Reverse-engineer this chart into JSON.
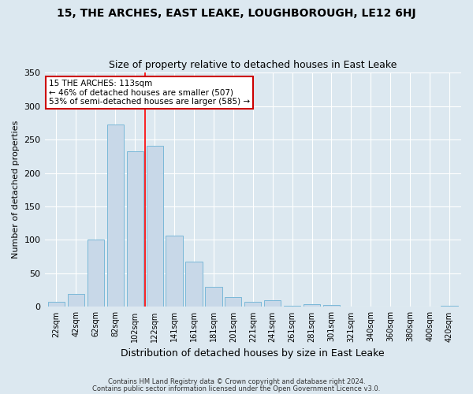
{
  "title": "15, THE ARCHES, EAST LEAKE, LOUGHBOROUGH, LE12 6HJ",
  "subtitle": "Size of property relative to detached houses in East Leake",
  "xlabel": "Distribution of detached houses by size in East Leake",
  "ylabel": "Number of detached properties",
  "bar_color": "#c8d8e8",
  "bar_edge_color": "#7ab8d8",
  "background_color": "#dce8f0",
  "fig_background_color": "#dce8f0",
  "grid_color": "#ffffff",
  "categories": [
    "22sqm",
    "42sqm",
    "62sqm",
    "82sqm",
    "102sqm",
    "122sqm",
    "141sqm",
    "161sqm",
    "181sqm",
    "201sqm",
    "221sqm",
    "241sqm",
    "261sqm",
    "281sqm",
    "301sqm",
    "321sqm",
    "340sqm",
    "360sqm",
    "380sqm",
    "400sqm",
    "420sqm"
  ],
  "values": [
    7,
    19,
    100,
    272,
    232,
    241,
    106,
    68,
    30,
    15,
    7,
    10,
    2,
    4,
    3,
    0,
    0,
    0,
    0,
    0,
    2
  ],
  "ylim": [
    0,
    350
  ],
  "yticks": [
    0,
    50,
    100,
    150,
    200,
    250,
    300,
    350
  ],
  "red_line_x": 4.5,
  "annotation_text": "15 THE ARCHES: 113sqm\n← 46% of detached houses are smaller (507)\n53% of semi-detached houses are larger (585) →",
  "annotation_box_color": "#ffffff",
  "annotation_border_color": "#cc0000",
  "footer1": "Contains HM Land Registry data © Crown copyright and database right 2024.",
  "footer2": "Contains public sector information licensed under the Open Government Licence v3.0."
}
